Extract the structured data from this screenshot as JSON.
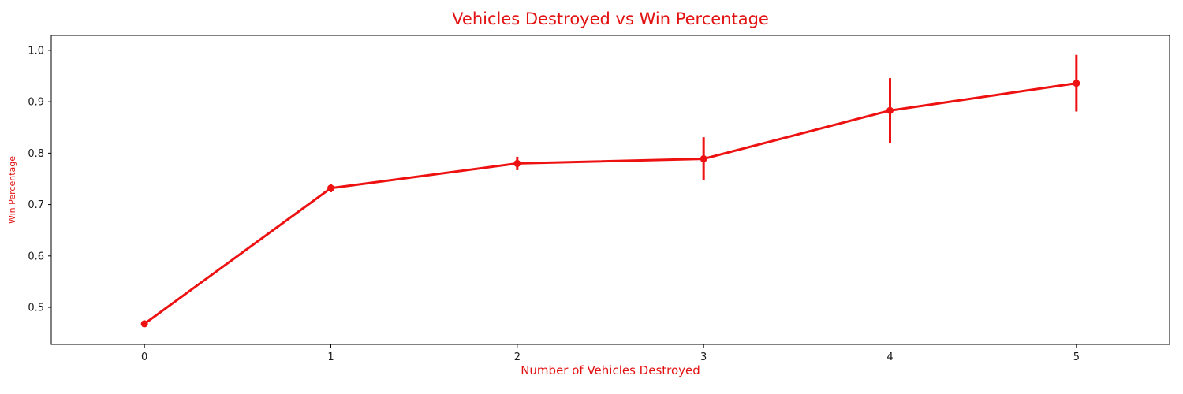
{
  "chart_data": {
    "type": "line",
    "title": "Vehicles Destroyed vs Win Percentage",
    "xlabel": "Number of Vehicles Destroyed",
    "ylabel": "Win Percentage",
    "x": [
      0,
      1,
      2,
      3,
      4,
      5
    ],
    "y": [
      0.468,
      0.732,
      0.78,
      0.789,
      0.883,
      0.936
    ],
    "yerr": [
      0.004,
      0.008,
      0.013,
      0.042,
      0.063,
      0.055
    ],
    "xlim": [
      -0.5,
      5.5
    ],
    "ylim": [
      0.428,
      1.029
    ],
    "xticks": [
      0,
      1,
      2,
      3,
      4,
      5
    ],
    "yticks": [
      0.5,
      0.6,
      0.7,
      0.8,
      0.9,
      1.0
    ],
    "line_color": "#ee1111",
    "title_color": "#e31212",
    "label_color": "#e31212",
    "tick_color": "#1a1a1a",
    "axis_color": "#000000",
    "marker": "o",
    "grid": false,
    "legend": null
  }
}
